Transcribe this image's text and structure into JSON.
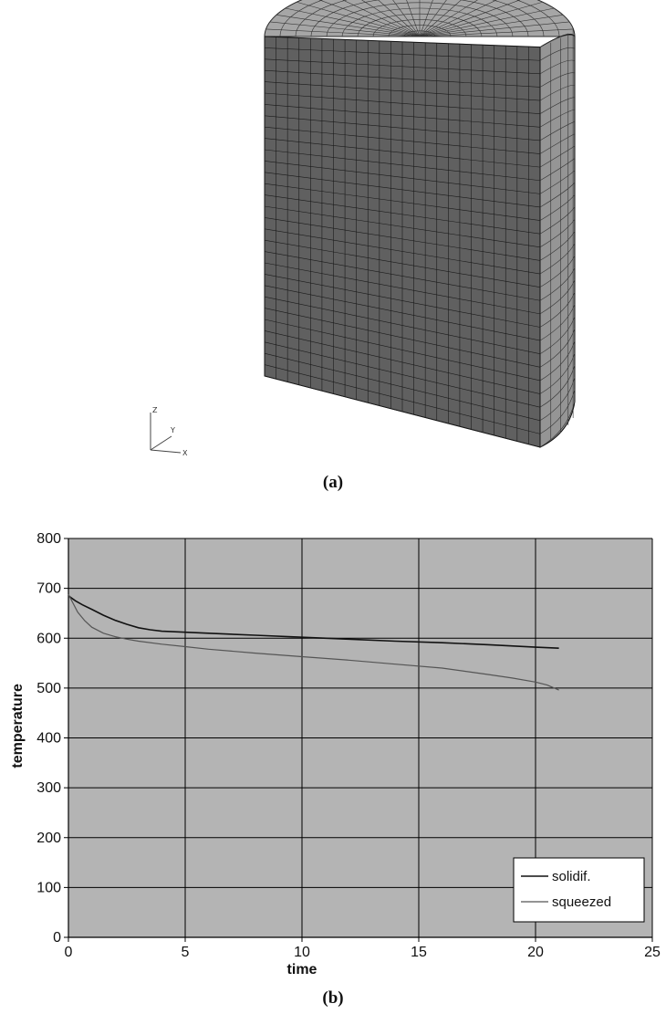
{
  "figure_a": {
    "caption": "(a)",
    "axis_triad": {
      "z": "Z",
      "y": "Y",
      "x": "X"
    }
  },
  "figure_b": {
    "caption": "(b)"
  },
  "colors": {
    "plot_background": "#b4b4b4",
    "mesh_front": "#606060",
    "mesh_top": "#a6a6a6",
    "mesh_side": "#959595",
    "series_solidif": "#111111",
    "series_squeezed": "#555555"
  },
  "chart_data": {
    "type": "line",
    "title": "",
    "xlabel": "time",
    "ylabel": "temperature",
    "xlim": [
      0,
      25
    ],
    "ylim": [
      0,
      800
    ],
    "x_ticks": [
      0,
      5,
      10,
      15,
      20,
      25
    ],
    "y_ticks": [
      0,
      100,
      200,
      300,
      400,
      500,
      600,
      700,
      800
    ],
    "grid": true,
    "legend_position": "bottom-right",
    "series": [
      {
        "name": "solidif.",
        "x": [
          0,
          0.3,
          0.6,
          1,
          1.5,
          2,
          2.5,
          3,
          3.5,
          4,
          5,
          6,
          8,
          10,
          12,
          14,
          16,
          18,
          20,
          21
        ],
        "y": [
          685,
          675,
          667,
          658,
          646,
          636,
          628,
          621,
          617,
          614,
          612,
          610,
          606,
          602,
          598,
          594,
          591,
          587,
          582,
          580
        ]
      },
      {
        "name": "squeezed",
        "x": [
          0,
          0.2,
          0.4,
          0.7,
          1,
          1.5,
          2,
          2.5,
          3,
          4,
          5,
          6,
          8,
          10,
          12,
          14,
          16,
          18,
          19,
          20,
          20.5,
          21
        ],
        "y": [
          688,
          670,
          652,
          635,
          622,
          610,
          603,
          598,
          594,
          588,
          583,
          578,
          570,
          563,
          556,
          548,
          540,
          527,
          520,
          512,
          506,
          496
        ]
      }
    ]
  }
}
